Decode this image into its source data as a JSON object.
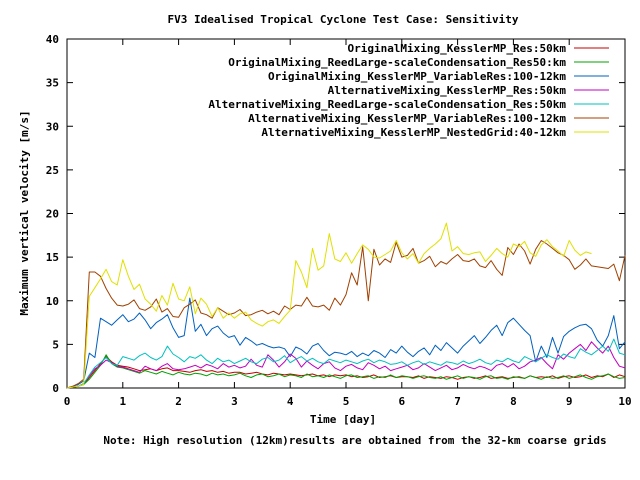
{
  "chart_data": {
    "type": "line",
    "title": "FV3 Idealised Tropical Cyclone Test Case: Sensitivity",
    "xlabel": "Time [day]",
    "ylabel": "Maximum vertical velocity [m/s]",
    "note": "Note: High resolution (12km)results are obtained from the 32-km coarse grids",
    "xlim": [
      0,
      10
    ],
    "ylim": [
      0,
      40
    ],
    "x_ticks": [
      0,
      1,
      2,
      3,
      4,
      5,
      6,
      7,
      8,
      9,
      10
    ],
    "y_ticks": [
      0,
      5,
      10,
      15,
      20,
      25,
      30,
      35,
      40
    ],
    "grid": false,
    "legend_position": "top-right",
    "x": [
      0,
      0.1,
      0.2,
      0.3,
      0.4,
      0.5,
      0.6,
      0.7,
      0.8,
      0.9,
      1,
      1.1,
      1.2,
      1.3,
      1.4,
      1.5,
      1.6,
      1.7,
      1.8,
      1.9,
      2,
      2.1,
      2.2,
      2.3,
      2.4,
      2.5,
      2.6,
      2.7,
      2.8,
      2.9,
      3,
      3.1,
      3.2,
      3.3,
      3.4,
      3.5,
      3.6,
      3.7,
      3.8,
      3.9,
      4,
      4.1,
      4.2,
      4.3,
      4.4,
      4.5,
      4.6,
      4.7,
      4.8,
      4.9,
      5,
      5.1,
      5.2,
      5.3,
      5.4,
      5.5,
      5.6,
      5.7,
      5.8,
      5.9,
      6,
      6.1,
      6.2,
      6.3,
      6.4,
      6.5,
      6.6,
      6.7,
      6.8,
      6.9,
      7,
      7.1,
      7.2,
      7.3,
      7.4,
      7.5,
      7.6,
      7.7,
      7.8,
      7.9,
      8,
      8.1,
      8.2,
      8.3,
      8.4,
      8.5,
      8.6,
      8.7,
      8.8,
      8.9,
      9,
      9.1,
      9.2,
      9.3,
      9.4,
      9.5,
      9.6,
      9.7,
      9.8,
      9.9,
      10
    ],
    "series": [
      {
        "name": "OriginalMixing_KesslerMP_Res:50km",
        "color": "#c00000",
        "values": [
          0,
          0.1,
          0.2,
          0.4,
          1.2,
          2.0,
          2.8,
          3.6,
          3.0,
          2.6,
          2.5,
          2.4,
          2.2,
          2.0,
          2.1,
          2.2,
          2.0,
          2.2,
          2.3,
          2.0,
          2.0,
          1.9,
          1.8,
          2.0,
          2.1,
          1.9,
          2.0,
          1.8,
          1.9,
          1.7,
          1.8,
          1.8,
          1.6,
          1.7,
          1.8,
          1.6,
          1.5,
          1.7,
          1.6,
          1.5,
          1.6,
          1.5,
          1.4,
          1.5,
          1.6,
          1.4,
          1.5,
          1.3,
          1.5,
          1.4,
          1.5,
          1.3,
          1.4,
          1.2,
          1.3,
          1.5,
          1.2,
          1.3,
          1.4,
          1.2,
          1.3,
          1.3,
          1.2,
          1.4,
          1.1,
          1.3,
          1.2,
          1.1,
          1.3,
          1.2,
          1.0,
          1.2,
          1.3,
          1.1,
          1.2,
          1.4,
          1.1,
          1.2,
          1.3,
          1.1,
          1.2,
          1.3,
          1.1,
          1.4,
          1.2,
          1.3,
          1.2,
          1.4,
          1.1,
          1.3,
          1.4,
          1.2,
          1.3,
          1.5,
          1.2,
          1.4,
          1.3,
          1.6,
          1.2,
          1.5,
          1.3
        ]
      },
      {
        "name": "OriginalMixing_ReedLarge-scaleCondensation_Res50:km",
        "color": "#00a000",
        "values": [
          0,
          0.1,
          0.2,
          0.4,
          1.0,
          1.8,
          2.6,
          3.8,
          2.8,
          2.4,
          2.3,
          2.1,
          1.9,
          1.7,
          2.0,
          1.8,
          1.6,
          1.9,
          1.7,
          1.5,
          1.8,
          1.6,
          1.5,
          1.7,
          1.6,
          1.4,
          1.7,
          1.5,
          1.6,
          1.4,
          1.5,
          1.7,
          1.4,
          1.2,
          1.5,
          1.6,
          1.3,
          1.4,
          1.6,
          1.3,
          1.5,
          1.4,
          1.2,
          1.6,
          1.3,
          1.4,
          1.2,
          1.5,
          1.3,
          1.1,
          1.4,
          1.5,
          1.2,
          1.3,
          1.4,
          1.1,
          1.3,
          1.2,
          1.5,
          1.2,
          1.4,
          1.3,
          1.1,
          1.3,
          1.4,
          1.2,
          1.1,
          1.3,
          1.0,
          1.2,
          1.4,
          1.1,
          1.3,
          1.2,
          1.0,
          1.3,
          1.4,
          1.1,
          1.2,
          1.0,
          1.3,
          1.2,
          1.1,
          1.4,
          1.2,
          1.0,
          1.3,
          1.1,
          1.2,
          1.4,
          1.1,
          1.3,
          1.5,
          1.2,
          1.0,
          1.3,
          1.4,
          1.6,
          1.3,
          1.1,
          1.2
        ]
      },
      {
        "name": "OriginalMixing_KesslerMP_VariableRes:100-12km",
        "color": "#0060c0",
        "values": [
          0,
          0.2,
          0.4,
          0.8,
          4.0,
          3.5,
          8.0,
          7.6,
          7.2,
          7.8,
          8.4,
          7.6,
          7.9,
          8.6,
          7.8,
          6.8,
          7.5,
          7.9,
          8.4,
          6.9,
          5.8,
          6.0,
          10.3,
          6.5,
          7.3,
          6.0,
          6.8,
          7.1,
          6.3,
          5.8,
          6.0,
          4.9,
          5.8,
          5.4,
          4.9,
          5.1,
          4.8,
          4.6,
          4.7,
          4.5,
          3.6,
          4.7,
          4.4,
          3.9,
          4.8,
          5.1,
          4.3,
          3.7,
          4.1,
          4.0,
          3.8,
          4.2,
          3.6,
          4.0,
          3.7,
          4.3,
          4.0,
          3.5,
          4.4,
          4.0,
          4.8,
          4.1,
          3.6,
          4.2,
          4.6,
          3.8,
          4.9,
          4.3,
          5.2,
          4.6,
          4.0,
          4.8,
          5.4,
          6.0,
          5.1,
          5.8,
          6.6,
          7.2,
          6.0,
          7.5,
          8.0,
          7.3,
          6.6,
          6.0,
          3.0,
          4.8,
          3.5,
          5.8,
          4.0,
          5.9,
          6.5,
          6.9,
          7.2,
          7.3,
          6.8,
          5.5,
          4.8,
          6.0,
          8.3,
          4.5,
          5.3
        ]
      },
      {
        "name": "AlternativeMixing_KesslerMP_Res:50km",
        "color": "#c000c0",
        "values": [
          0,
          0.1,
          0.2,
          0.5,
          1.4,
          2.2,
          2.6,
          3.2,
          2.9,
          2.5,
          2.4,
          2.2,
          2.0,
          1.8,
          2.5,
          2.2,
          2.0,
          2.5,
          2.8,
          2.2,
          2.1,
          2.2,
          2.4,
          2.6,
          2.3,
          2.7,
          2.5,
          2.2,
          2.8,
          2.4,
          2.6,
          2.3,
          2.5,
          3.3,
          2.6,
          2.4,
          3.8,
          3.2,
          2.4,
          3.0,
          3.9,
          3.4,
          2.4,
          3.1,
          2.6,
          2.2,
          2.8,
          3.0,
          2.3,
          2.0,
          2.5,
          2.7,
          2.3,
          2.1,
          2.9,
          2.6,
          2.2,
          2.5,
          2.0,
          2.2,
          2.4,
          2.6,
          2.1,
          2.3,
          2.8,
          2.4,
          2.0,
          2.3,
          2.6,
          2.1,
          2.3,
          2.7,
          2.4,
          2.2,
          2.5,
          2.3,
          2.0,
          2.6,
          2.8,
          2.4,
          2.8,
          2.2,
          2.5,
          3.0,
          3.2,
          3.5,
          2.8,
          2.2,
          3.8,
          3.3,
          4.0,
          4.5,
          5.0,
          4.3,
          5.3,
          4.6,
          4.0,
          4.8,
          3.5,
          2.5,
          2.3
        ]
      },
      {
        "name": "AlternativeMixing_ReedLarge-scaleCondensation_Res:50km",
        "color": "#00c0c0",
        "values": [
          0,
          0.1,
          0.2,
          0.5,
          1.5,
          2.4,
          2.9,
          3.5,
          2.8,
          2.6,
          3.6,
          3.4,
          3.2,
          3.7,
          4.0,
          3.5,
          3.2,
          3.6,
          4.8,
          3.9,
          3.5,
          3.0,
          3.6,
          3.4,
          3.8,
          3.2,
          2.8,
          3.4,
          3.0,
          3.2,
          2.8,
          3.1,
          3.4,
          3.0,
          2.8,
          3.3,
          3.5,
          3.0,
          3.2,
          3.7,
          2.9,
          3.3,
          3.6,
          3.1,
          3.4,
          3.0,
          2.8,
          3.3,
          3.1,
          2.9,
          3.2,
          3.0,
          2.8,
          3.1,
          3.3,
          2.9,
          3.2,
          3.0,
          2.7,
          2.8,
          3.0,
          2.6,
          2.9,
          3.1,
          2.7,
          3.0,
          2.8,
          2.6,
          3.0,
          2.9,
          2.7,
          3.1,
          2.8,
          3.0,
          3.3,
          2.9,
          2.7,
          3.2,
          3.0,
          3.4,
          3.1,
          2.9,
          3.6,
          3.3,
          3.0,
          3.4,
          3.8,
          3.5,
          3.3,
          3.9,
          3.6,
          3.4,
          4.5,
          4.1,
          3.8,
          4.3,
          4.8,
          4.2,
          5.6,
          4.0,
          3.8
        ]
      },
      {
        "name": "AlternativeMixing_KesslerMP_VariableRes:100-12km",
        "color": "#a04000",
        "values": [
          0,
          0.2,
          0.5,
          1.0,
          13.3,
          13.3,
          12.8,
          11.4,
          10.3,
          9.5,
          9.4,
          9.6,
          10.1,
          9.1,
          8.9,
          9.3,
          10.2,
          8.7,
          9.1,
          8.2,
          8.1,
          9.2,
          9.6,
          10.1,
          8.6,
          8.4,
          8.0,
          9.2,
          8.8,
          8.4,
          8.6,
          9.0,
          8.3,
          8.4,
          8.7,
          8.9,
          8.5,
          8.8,
          8.4,
          9.4,
          9.0,
          9.5,
          9.4,
          10.4,
          9.4,
          9.3,
          9.5,
          8.9,
          10.3,
          9.5,
          10.7,
          13.2,
          11.8,
          16.2,
          10.0,
          15.9,
          14.1,
          14.8,
          14.4,
          16.7,
          15.0,
          15.2,
          16.0,
          14.3,
          14.6,
          15.1,
          13.9,
          14.5,
          14.2,
          14.8,
          15.3,
          14.6,
          14.5,
          14.8,
          14.0,
          13.8,
          14.6,
          13.6,
          12.9,
          16.1,
          15.3,
          16.5,
          15.7,
          14.2,
          15.9,
          16.9,
          16.5,
          16.0,
          15.5,
          15.2,
          14.7,
          13.6,
          14.1,
          14.8,
          14.0,
          13.9,
          13.8,
          13.7,
          14.2,
          12.3,
          15.2
        ]
      },
      {
        "name": "AlternativeMixing_KesslerMP_NestedGrid:40-12km",
        "color": "#e0e000",
        "values": [
          0,
          0.1,
          0.2,
          0.4,
          10.5,
          11.5,
          12.5,
          13.6,
          12.2,
          11.8,
          14.7,
          12.8,
          11.3,
          11.9,
          10.2,
          9.6,
          8.8,
          10.6,
          9.5,
          12.0,
          10.2,
          10.0,
          11.6,
          8.5,
          10.3,
          9.6,
          8.2,
          9.2,
          8.0,
          8.6,
          8.0,
          8.5,
          8.7,
          7.8,
          7.4,
          7.1,
          7.6,
          7.8,
          7.4,
          8.2,
          8.9,
          14.6,
          13.3,
          11.5,
          16.0,
          13.5,
          14.0,
          17.7,
          14.8,
          14.5,
          15.5,
          14.3,
          15.4,
          16.4,
          15.9,
          15.0,
          14.9,
          15.3,
          15.7,
          16.9,
          15.5,
          14.8,
          15.4,
          14.3,
          15.4,
          16.0,
          16.5,
          17.1,
          18.9,
          15.7,
          16.2,
          15.4,
          15.3,
          15.5,
          15.6,
          14.5,
          15.2,
          16.0,
          15.4,
          15.0,
          16.5,
          16.2,
          16.8,
          15.5,
          15.1,
          16.4,
          17.0,
          16.2,
          15.7,
          15.1,
          16.9,
          15.8,
          15.2,
          15.6,
          15.4,
          null,
          null,
          null,
          null,
          null,
          null
        ]
      }
    ]
  }
}
